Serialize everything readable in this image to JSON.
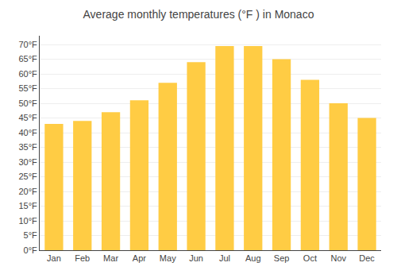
{
  "chart_data": {
    "type": "bar",
    "title": "Average monthly temperatures (°F ) in Monaco",
    "categories": [
      "Jan",
      "Feb",
      "Mar",
      "Apr",
      "May",
      "Jun",
      "Jul",
      "Aug",
      "Sep",
      "Oct",
      "Nov",
      "Dec"
    ],
    "values": [
      43,
      44,
      47,
      51,
      57,
      64,
      69.5,
      69.5,
      65,
      58,
      50,
      45
    ],
    "color": "#FFCC44",
    "ylim": [
      0,
      73
    ],
    "yticks": [
      {
        "value": 0,
        "label": "0°F"
      },
      {
        "value": 5,
        "label": "5°F"
      },
      {
        "value": 10,
        "label": "10°F"
      },
      {
        "value": 15,
        "label": "15°F"
      },
      {
        "value": 20,
        "label": "20°F"
      },
      {
        "value": 25,
        "label": "25°F"
      },
      {
        "value": 30,
        "label": "30°F"
      },
      {
        "value": 35,
        "label": "35°F"
      },
      {
        "value": 40,
        "label": "40°F"
      },
      {
        "value": 45,
        "label": "45°F"
      },
      {
        "value": 50,
        "label": "50°F"
      },
      {
        "value": 55,
        "label": "55°F"
      },
      {
        "value": 60,
        "label": "60°F"
      },
      {
        "value": 65,
        "label": "65°F"
      },
      {
        "value": 70,
        "label": "70°F"
      }
    ],
    "grid": true
  }
}
